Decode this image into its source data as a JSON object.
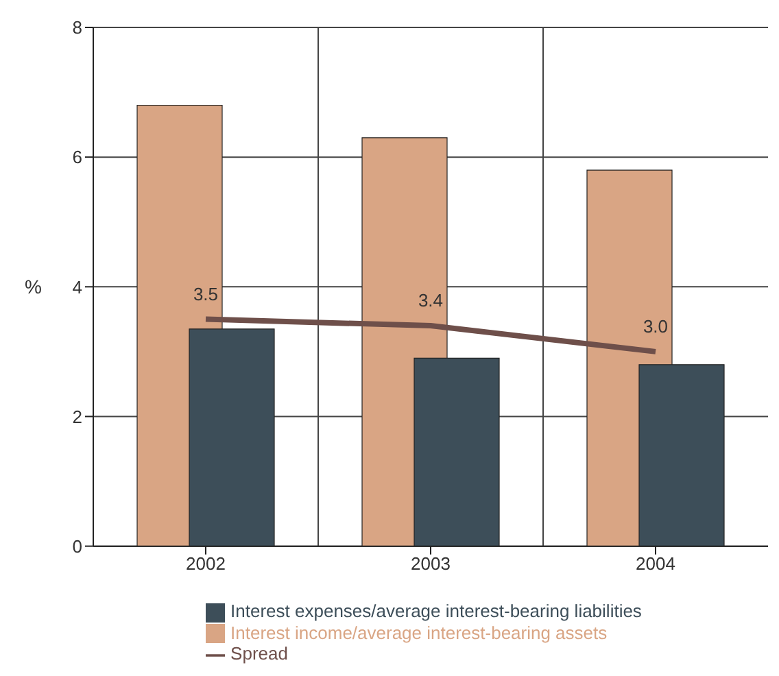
{
  "chart_data": {
    "type": "bar",
    "categories": [
      "2002",
      "2003",
      "2004"
    ],
    "ylabel": "%",
    "ylim": [
      0,
      8
    ],
    "yticks": [
      0,
      2,
      4,
      6,
      8
    ],
    "grid": true,
    "legend": "bottom",
    "series": [
      {
        "name": "Interest income/average interest-bearing assets",
        "color": "#d9a584",
        "values": [
          6.8,
          6.3,
          5.8
        ]
      },
      {
        "name": "Interest expenses/average interest-bearing liabilities",
        "color": "#3d4e59",
        "values": [
          3.35,
          2.9,
          2.8
        ]
      },
      {
        "name": "Spread",
        "type": "line",
        "color": "#6e4f4a",
        "values": [
          3.5,
          3.4,
          3.0
        ],
        "value_labels": [
          "3.5",
          "3.4",
          "3.0"
        ]
      }
    ]
  }
}
